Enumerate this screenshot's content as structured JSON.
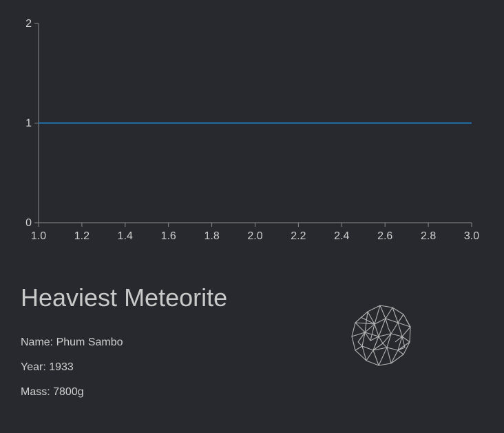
{
  "chart_data": {
    "type": "line",
    "x": [
      1.0,
      3.0
    ],
    "series": [
      {
        "values": [
          1,
          1
        ]
      }
    ],
    "xlim": [
      1.0,
      3.0
    ],
    "ylim": [
      0,
      2
    ],
    "xticks": [
      "1.0",
      "1.2",
      "1.4",
      "1.6",
      "1.8",
      "2.0",
      "2.2",
      "2.4",
      "2.6",
      "2.8",
      "3.0"
    ],
    "yticks": [
      "0",
      "1",
      "2"
    ],
    "grid": false,
    "line_color": "#1f77b4",
    "axis_color": "#8a8a8a"
  },
  "info": {
    "title": "Heaviest Meteorite",
    "name": "Name: Phum Sambo",
    "year": "Year: 1933",
    "mass": "Mass: 7800g"
  },
  "meteor_icon": "meteorite-wireframe-icon"
}
